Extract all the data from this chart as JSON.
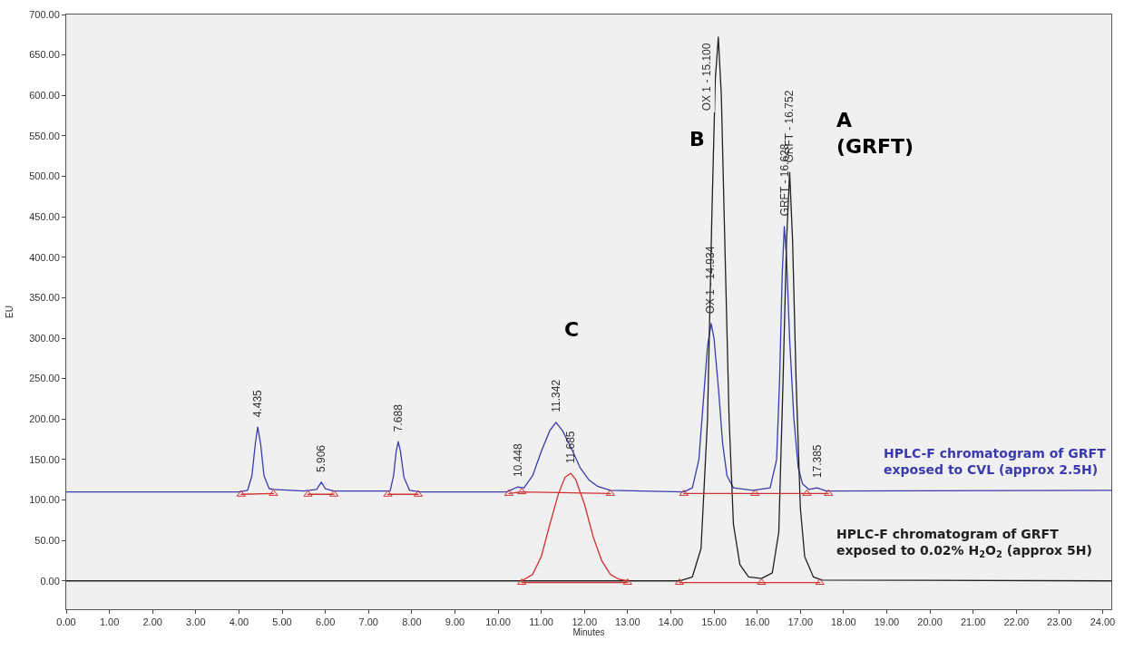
{
  "chart_data": {
    "type": "line",
    "xlabel": "Minutes",
    "ylabel": "EU",
    "xlim": [
      0,
      24.2
    ],
    "ylim": [
      -35,
      700
    ],
    "xticks": [
      {
        "value": 0,
        "label": "0.00"
      },
      {
        "value": 1,
        "label": "1.00"
      },
      {
        "value": 2,
        "label": "2.00"
      },
      {
        "value": 3,
        "label": "3.00"
      },
      {
        "value": 4,
        "label": "4.00"
      },
      {
        "value": 5,
        "label": "5.00"
      },
      {
        "value": 6,
        "label": "6.00"
      },
      {
        "value": 7,
        "label": "7.00"
      },
      {
        "value": 8,
        "label": "8.00"
      },
      {
        "value": 9,
        "label": "9.00"
      },
      {
        "value": 10,
        "label": "10.00"
      },
      {
        "value": 11,
        "label": "11.00"
      },
      {
        "value": 12,
        "label": "12.00"
      },
      {
        "value": 13,
        "label": "13.00"
      },
      {
        "value": 14,
        "label": "14.00"
      },
      {
        "value": 15,
        "label": "15.00"
      },
      {
        "value": 16,
        "label": "16.00"
      },
      {
        "value": 17,
        "label": "17.00"
      },
      {
        "value": 18,
        "label": "18.00"
      },
      {
        "value": 19,
        "label": "19.00"
      },
      {
        "value": 20,
        "label": "20.00"
      },
      {
        "value": 21,
        "label": "21.00"
      },
      {
        "value": 22,
        "label": "22.00"
      },
      {
        "value": 23,
        "label": "23.00"
      },
      {
        "value": 24,
        "label": "24.00"
      }
    ],
    "yticks": [
      {
        "value": 0,
        "label": "0.00"
      },
      {
        "value": 50,
        "label": "50.00"
      },
      {
        "value": 100,
        "label": "100.00"
      },
      {
        "value": 150,
        "label": "150.00"
      },
      {
        "value": 200,
        "label": "200.00"
      },
      {
        "value": 250,
        "label": "250.00"
      },
      {
        "value": 300,
        "label": "300.00"
      },
      {
        "value": 350,
        "label": "350.00"
      },
      {
        "value": 400,
        "label": "400.00"
      },
      {
        "value": 450,
        "label": "450.00"
      },
      {
        "value": 500,
        "label": "500.00"
      },
      {
        "value": 550,
        "label": "550.00"
      },
      {
        "value": 600,
        "label": "600.00"
      },
      {
        "value": 650,
        "label": "650.00"
      },
      {
        "value": 700,
        "label": "700.00"
      }
    ],
    "grid": false,
    "legend": false,
    "series": [
      {
        "name": "HPLC-F chromatogram of GRFT\nexposed to CVL (approx 2.5H)",
        "color": "#3a3ab0",
        "marker": "none",
        "x": [
          0,
          4.0,
          4.2,
          4.3,
          4.38,
          4.435,
          4.5,
          4.58,
          4.7,
          4.8,
          5.5,
          5.8,
          5.906,
          6.0,
          6.2,
          7.5,
          7.58,
          7.64,
          7.688,
          7.74,
          7.82,
          7.95,
          8.2,
          10.2,
          10.448,
          10.6,
          10.8,
          11.0,
          11.2,
          11.342,
          11.5,
          11.685,
          11.9,
          12.1,
          12.3,
          12.6,
          14.3,
          14.5,
          14.65,
          14.75,
          14.85,
          14.934,
          15.0,
          15.1,
          15.2,
          15.3,
          15.45,
          15.9,
          16.3,
          16.45,
          16.52,
          16.58,
          16.628,
          16.68,
          16.75,
          16.85,
          16.95,
          17.05,
          17.2,
          17.385,
          17.6,
          24.2
        ],
        "values": [
          110,
          110,
          112,
          130,
          170,
          190,
          170,
          130,
          114,
          113,
          111,
          113,
          122,
          114,
          111,
          111,
          130,
          160,
          172,
          160,
          128,
          112,
          110,
          110,
          116,
          115,
          130,
          160,
          186,
          196,
          185,
          165,
          140,
          125,
          117,
          112,
          110,
          115,
          150,
          220,
          290,
          318,
          300,
          240,
          170,
          130,
          115,
          112,
          115,
          150,
          250,
          380,
          438,
          400,
          300,
          200,
          140,
          120,
          113,
          115,
          111,
          112
        ]
      },
      {
        "name": "HPLC-F chromatogram of GRFT\nexposed to 0.02% H$_{2}$O$_{2}$ (approx 5H)",
        "color": "#202020",
        "marker": "none",
        "x": [
          0,
          10.5,
          13.0,
          14.2,
          14.5,
          14.7,
          14.85,
          14.95,
          15.03,
          15.1,
          15.17,
          15.25,
          15.35,
          15.45,
          15.6,
          15.8,
          16.1,
          16.35,
          16.5,
          16.6,
          16.68,
          16.752,
          16.82,
          16.9,
          17.0,
          17.1,
          17.3,
          17.5,
          24.2
        ],
        "values": [
          0,
          0,
          0,
          0,
          5,
          40,
          200,
          450,
          620,
          672,
          600,
          420,
          200,
          70,
          20,
          5,
          3,
          10,
          60,
          250,
          420,
          505,
          420,
          250,
          90,
          30,
          5,
          1,
          0
        ]
      },
      {
        "color": "#d03030",
        "marker": "none",
        "x": [
          10.55,
          10.8,
          11.0,
          11.2,
          11.4,
          11.55,
          11.685,
          11.8,
          12.0,
          12.2,
          12.4,
          12.6,
          12.8,
          13.0
        ],
        "values": [
          0,
          8,
          30,
          70,
          108,
          128,
          133,
          125,
          95,
          55,
          25,
          8,
          2,
          0
        ]
      },
      {
        "color": "#d03030",
        "marker": "triangle",
        "x": [
          4.05,
          4.8,
          null,
          5.6,
          6.2,
          null,
          7.45,
          8.15,
          null,
          10.25,
          10.55,
          12.6,
          null,
          14.3,
          15.95,
          17.15,
          17.65,
          null,
          10.55,
          13.0,
          null,
          14.2,
          16.1,
          17.45
        ],
        "values": [
          107,
          108,
          null,
          107,
          107,
          null,
          107,
          107,
          null,
          108,
          110,
          108,
          null,
          108,
          108,
          108,
          108,
          null,
          -2,
          -2,
          null,
          -2,
          -2,
          -2
        ]
      }
    ],
    "annotations": [
      {
        "text": "4.435",
        "x": 4.435,
        "y": 190
      },
      {
        "text": "5.906",
        "x": 5.906,
        "y": 122
      },
      {
        "text": "7.688",
        "x": 7.688,
        "y": 172
      },
      {
        "text": "10.448",
        "x": 10.448,
        "y": 116
      },
      {
        "text": "11.342",
        "x": 11.342,
        "y": 196
      },
      {
        "text": "11.685",
        "x": 11.685,
        "y": 133
      },
      {
        "text": "OX 1 - 14.934",
        "x": 14.934,
        "y": 318
      },
      {
        "text": "OX 1 - 15.100",
        "x": 15.1,
        "y": 672
      },
      {
        "text": "GRFT - 16.628",
        "x": 16.628,
        "y": 438
      },
      {
        "text": "GRFT - 16.752",
        "x": 16.752,
        "y": 505
      },
      {
        "text": "17.385",
        "x": 17.385,
        "y": 115
      },
      "C",
      "B",
      "A\n(GRFT)"
    ]
  }
}
